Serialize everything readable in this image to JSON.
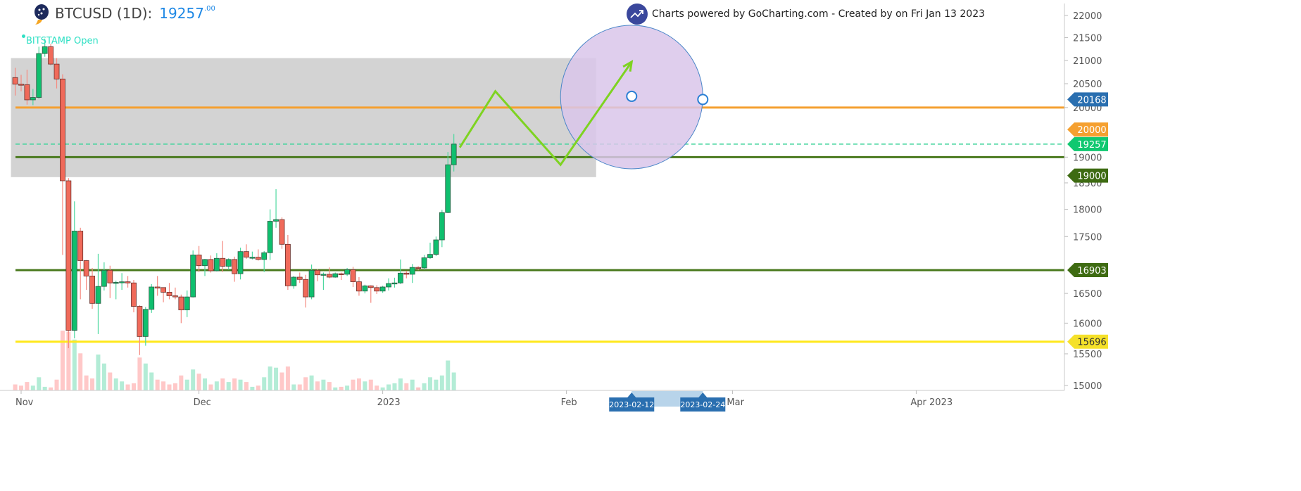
{
  "header": {
    "symbol": "BTCUSD (1D):",
    "price_int": "19257",
    "price_dec": ".00",
    "exchange_label": "BITSTAMP Open"
  },
  "credit": {
    "text": "Charts powered by GoCharting.com - Created by  on Fri Jan 13 2023",
    "icon": "trending-up-icon"
  },
  "colors": {
    "up": "#0fbf6e",
    "down": "#f06a5a",
    "up_volume": "#b3ecd6",
    "down_volume": "#ffc8c8",
    "zone": "#d3d3d3",
    "zigzag": "#7ed321",
    "circle_fill": "#d9c6ea",
    "circle_stroke": "#4a86c8"
  },
  "chart_data": {
    "type": "candlestick",
    "title": "BTCUSD (1D)",
    "y_scale": "log",
    "ylim": [
      15000,
      22000
    ],
    "y_ticks": [
      "22000",
      "21500",
      "21000",
      "20500",
      "20000",
      "19000",
      "18500",
      "18000",
      "17500",
      "16500",
      "16000",
      "15500",
      "15000"
    ],
    "x_ticks": [
      {
        "date": "2022-11-01",
        "label": "Nov"
      },
      {
        "date": "2022-12-01",
        "label": "Dec"
      },
      {
        "date": "2023-01-01",
        "label": "2023"
      },
      {
        "date": "2023-02-01",
        "label": "Feb"
      },
      {
        "date": "2023-03-01",
        "label": "Mar"
      },
      {
        "date": "2023-04-01",
        "label": "Apr 2023"
      }
    ],
    "xlim": [
      "2022-10-31",
      "2023-04-30"
    ],
    "candles_columns": [
      "date",
      "open",
      "high",
      "low",
      "close",
      "volume_relative"
    ],
    "candles": [
      [
        "2022-10-31",
        20630,
        20840,
        20250,
        20490,
        10
      ],
      [
        "2022-11-01",
        20490,
        20690,
        20340,
        20480,
        8
      ],
      [
        "2022-11-02",
        20480,
        20800,
        20060,
        20160,
        14
      ],
      [
        "2022-11-03",
        20160,
        20390,
        20050,
        20210,
        8
      ],
      [
        "2022-11-04",
        20210,
        21300,
        20180,
        21150,
        22
      ],
      [
        "2022-11-05",
        21150,
        21480,
        21080,
        21300,
        6
      ],
      [
        "2022-11-06",
        21300,
        21360,
        20890,
        20920,
        5
      ],
      [
        "2022-11-07",
        20920,
        21050,
        20400,
        20600,
        18
      ],
      [
        "2022-11-08",
        20600,
        20700,
        17170,
        18540,
        100
      ],
      [
        "2022-11-09",
        18540,
        18590,
        15590,
        15880,
        98
      ],
      [
        "2022-11-10",
        15880,
        18150,
        15750,
        17600,
        85
      ],
      [
        "2022-11-11",
        17600,
        17660,
        16400,
        17070,
        62
      ],
      [
        "2022-11-12",
        17070,
        17080,
        16560,
        16800,
        25
      ],
      [
        "2022-11-13",
        16800,
        16940,
        16240,
        16330,
        20
      ],
      [
        "2022-11-14",
        16330,
        17190,
        15820,
        16620,
        60
      ],
      [
        "2022-11-15",
        16620,
        17040,
        16550,
        16900,
        45
      ],
      [
        "2022-11-16",
        16900,
        16980,
        16420,
        16680,
        30
      ],
      [
        "2022-11-17",
        16680,
        16720,
        16400,
        16690,
        20
      ],
      [
        "2022-11-18",
        16690,
        16850,
        16560,
        16700,
        15
      ],
      [
        "2022-11-19",
        16700,
        16800,
        16600,
        16680,
        10
      ],
      [
        "2022-11-20",
        16680,
        16730,
        16180,
        16280,
        12
      ],
      [
        "2022-11-21",
        16280,
        16300,
        15480,
        15780,
        55
      ],
      [
        "2022-11-22",
        15780,
        16270,
        15630,
        16230,
        45
      ],
      [
        "2022-11-23",
        16230,
        16660,
        16170,
        16610,
        30
      ],
      [
        "2022-11-24",
        16610,
        16800,
        16460,
        16600,
        18
      ],
      [
        "2022-11-25",
        16600,
        16600,
        16350,
        16520,
        15
      ],
      [
        "2022-11-26",
        16520,
        16680,
        16400,
        16460,
        10
      ],
      [
        "2022-11-27",
        16460,
        16600,
        16400,
        16440,
        12
      ],
      [
        "2022-11-28",
        16440,
        16480,
        16000,
        16220,
        25
      ],
      [
        "2022-11-29",
        16220,
        16550,
        16100,
        16440,
        18
      ],
      [
        "2022-11-30",
        16440,
        17250,
        16430,
        17170,
        35
      ],
      [
        "2022-12-01",
        17170,
        17330,
        16870,
        16980,
        28
      ],
      [
        "2022-12-02",
        16980,
        17100,
        16800,
        17090,
        20
      ],
      [
        "2022-12-03",
        17090,
        17160,
        16860,
        16890,
        10
      ],
      [
        "2022-12-04",
        16890,
        17200,
        16880,
        17110,
        15
      ],
      [
        "2022-12-05",
        17110,
        17420,
        16870,
        16970,
        20
      ],
      [
        "2022-12-06",
        16970,
        17110,
        16910,
        17090,
        14
      ],
      [
        "2022-12-07",
        17090,
        17140,
        16700,
        16840,
        20
      ],
      [
        "2022-12-08",
        16840,
        17300,
        16740,
        17230,
        18
      ],
      [
        "2022-12-09",
        17230,
        17360,
        17100,
        17130,
        14
      ],
      [
        "2022-12-10",
        17130,
        17230,
        17090,
        17130,
        6
      ],
      [
        "2022-12-11",
        17130,
        17270,
        17070,
        17090,
        8
      ],
      [
        "2022-12-12",
        17090,
        17240,
        16870,
        17210,
        22
      ],
      [
        "2022-12-13",
        17210,
        18000,
        17080,
        17780,
        40
      ],
      [
        "2022-12-14",
        17780,
        18380,
        17660,
        17810,
        38
      ],
      [
        "2022-12-15",
        17810,
        17850,
        17280,
        17360,
        30
      ],
      [
        "2022-12-16",
        17360,
        17530,
        16560,
        16630,
        40
      ],
      [
        "2022-12-17",
        16630,
        16800,
        16580,
        16780,
        10
      ],
      [
        "2022-12-18",
        16780,
        16860,
        16680,
        16740,
        10
      ],
      [
        "2022-12-19",
        16740,
        16820,
        16260,
        16440,
        22
      ],
      [
        "2022-12-20",
        16440,
        17000,
        16400,
        16900,
        25
      ],
      [
        "2022-12-21",
        16900,
        16920,
        16710,
        16820,
        15
      ],
      [
        "2022-12-22",
        16820,
        16860,
        16560,
        16830,
        18
      ],
      [
        "2022-12-23",
        16830,
        16950,
        16760,
        16780,
        14
      ],
      [
        "2022-12-24",
        16780,
        16860,
        16770,
        16840,
        5
      ],
      [
        "2022-12-25",
        16840,
        16860,
        16730,
        16830,
        6
      ],
      [
        "2022-12-26",
        16830,
        16940,
        16800,
        16910,
        8
      ],
      [
        "2022-12-27",
        16910,
        16960,
        16610,
        16700,
        18
      ],
      [
        "2022-12-28",
        16700,
        16780,
        16460,
        16540,
        20
      ],
      [
        "2022-12-29",
        16540,
        16650,
        16500,
        16630,
        15
      ],
      [
        "2022-12-30",
        16630,
        16640,
        16340,
        16600,
        18
      ],
      [
        "2022-12-31",
        16600,
        16640,
        16490,
        16540,
        8
      ],
      [
        "2023-01-01",
        16540,
        16630,
        16510,
        16610,
        5
      ],
      [
        "2023-01-02",
        16610,
        16760,
        16550,
        16670,
        10
      ],
      [
        "2023-01-03",
        16670,
        16770,
        16600,
        16680,
        12
      ],
      [
        "2023-01-04",
        16680,
        17090,
        16660,
        16850,
        20
      ],
      [
        "2023-01-05",
        16850,
        16890,
        16760,
        16830,
        12
      ],
      [
        "2023-01-06",
        16830,
        17010,
        16680,
        16950,
        18
      ],
      [
        "2023-01-07",
        16950,
        16970,
        16900,
        16940,
        5
      ],
      [
        "2023-01-08",
        16940,
        17170,
        16910,
        17120,
        12
      ],
      [
        "2023-01-09",
        17120,
        17390,
        17100,
        17180,
        22
      ],
      [
        "2023-01-10",
        17180,
        17500,
        17150,
        17440,
        18
      ],
      [
        "2023-01-11",
        17440,
        17990,
        17310,
        17940,
        25
      ],
      [
        "2023-01-12",
        17940,
        19100,
        17930,
        18850,
        50
      ],
      [
        "2023-01-13",
        18850,
        19460,
        18720,
        19257,
        30
      ]
    ],
    "horizontal_lines": [
      {
        "price": 20000,
        "label": "20000",
        "color": "#f5a030",
        "tag_text_color": "#ffffff",
        "style": "solid"
      },
      {
        "price": 19257,
        "label": "19257",
        "color": "#3dd49a",
        "tag_color": "#10c870",
        "tag_text_color": "#ffffff",
        "style": "dashed"
      },
      {
        "price": 19000,
        "label": "19000",
        "color": "#4a7a1e",
        "tag_color": "#3e6b12",
        "tag_text_color": "#ffffff",
        "style": "solid"
      },
      {
        "price": 16903,
        "label": "16903",
        "color": "#4a7a1e",
        "tag_color": "#3e6b12",
        "tag_text_color": "#ffffff",
        "style": "solid"
      },
      {
        "price": 15696,
        "label": "15696",
        "color": "#ffe81a",
        "tag_color": "#f5e12a",
        "tag_text_color": "#333333",
        "style": "solid"
      }
    ],
    "zone_rect": {
      "from": "2022-10-31",
      "to": "2023-02-06",
      "top": 21050,
      "bottom": 18610
    },
    "zigzag": [
      [
        "2023-01-14",
        19190
      ],
      [
        "2023-01-20",
        20340
      ],
      [
        "2023-01-31",
        18850
      ],
      [
        "2023-02-12",
        20970
      ]
    ],
    "circle": {
      "center_date": "2023-02-12",
      "center_price": 20234,
      "edge_date": "2023-02-24",
      "edge_price": 20168,
      "edge_label": "20168",
      "edge_tag_color": "#2a6fb0"
    },
    "x_markers": [
      {
        "date": "2023-02-12",
        "label": "2023-02-12"
      },
      {
        "date": "2023-02-24",
        "label": "2023-02-24"
      }
    ]
  }
}
